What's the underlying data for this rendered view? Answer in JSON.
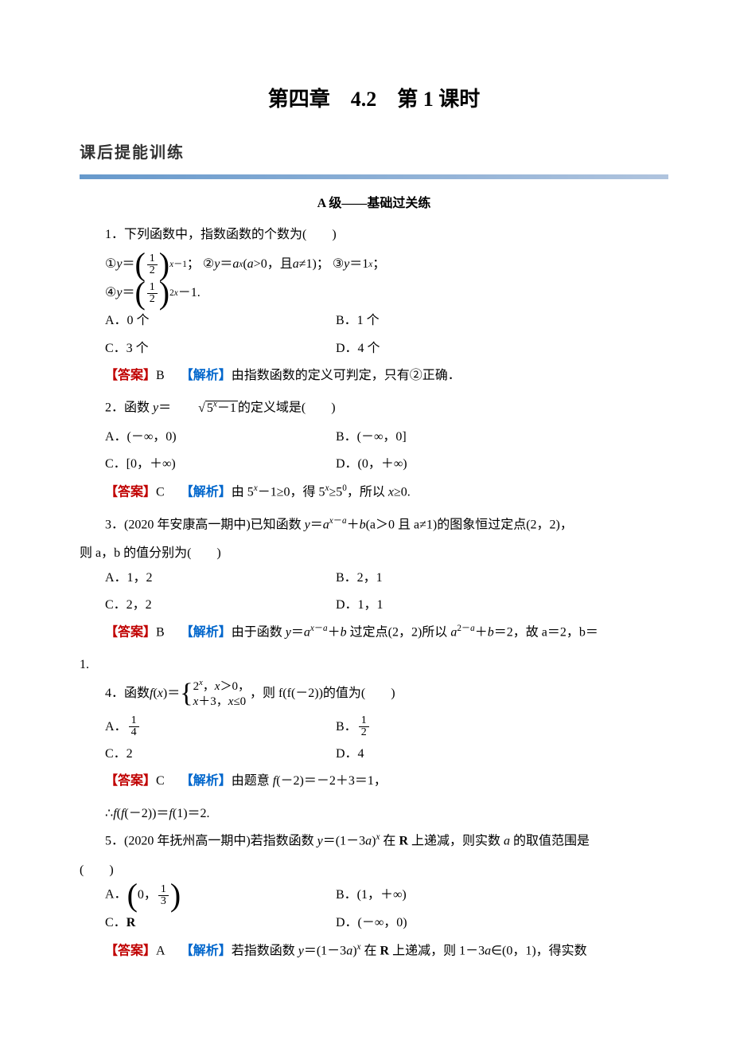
{
  "header": {
    "chapter": "第四章　4.2　第 1 课时",
    "section": "课后提能训练",
    "level": "A 级——基础过关练"
  },
  "q1": {
    "stem": "1．下列函数中，指数函数的个数为(　　)",
    "opt_a": "A．0 个",
    "opt_b": "B．1 个",
    "opt_c": "C．3 个",
    "opt_d": "D．4 个",
    "ans_label": "【答案】",
    "ans": "B",
    "exp_label": "【解析】",
    "exp": "由指数函数的定义可判定，只有②正确．"
  },
  "q2": {
    "stem_prefix": "2．函数 ",
    "stem_suffix": "的定义域是(　　)",
    "opt_a": "A．(－∞，0)",
    "opt_b": "B．(－∞，0]",
    "opt_c": "C．[0，＋∞)",
    "opt_d": "D．(0，＋∞)",
    "ans_label": "【答案】",
    "ans": "C",
    "exp_label": "【解析】",
    "exp_text": "由 5x－1≥0，得 5x≥50，所以 x≥0."
  },
  "q3": {
    "stem_p1": "3．(2020 年安康高一期中)已知函数 ",
    "stem_p2": "(a＞0 且 a≠1)的图象恒过定点(2，2)，",
    "stem_line2": "则 a，b 的值分别为(　　)",
    "opt_a": "A．1，2",
    "opt_b": "B．2，1",
    "opt_c": "C．2，2",
    "opt_d": "D．1，1",
    "ans_label": "【答案】",
    "ans": "B",
    "exp_label": "【解析】",
    "exp_p1": "由于函数 ",
    "exp_p2": " 过定点(2，2)所以 ",
    "exp_p3": "，故 a＝2，b＝",
    "exp_line2": "1."
  },
  "q4": {
    "stem_prefix": "4．函数 ",
    "stem_suffix": "，则 f(f(－2))的值为(　　)",
    "opt_c": "C．2",
    "opt_d": "D．4",
    "ans_label": "【答案】",
    "ans": "C",
    "exp_label": "【解析】",
    "exp_l1": "由题意 f(－2)＝－2＋3＝1，",
    "exp_l2": "∴f(f(－2))＝f(1)＝2."
  },
  "q5": {
    "stem_p1": "5．(2020 年抚州高一期中)若指数函数 ",
    "stem_p2": " 在 R 上递减，则实数 a 的取值范围是",
    "stem_line2": "(　　)",
    "opt_a_prefix": "A．",
    "opt_b": "B．(1，＋∞)",
    "opt_c": "C．R",
    "opt_d": "D．(－∞，0)",
    "ans_label": "【答案】",
    "ans": "A",
    "exp_label": "【解析】",
    "exp_p1": "若指数函数 ",
    "exp_p2": " 在 R 上递减，则 1－3a∈(0，1)，得实数"
  },
  "labels": {
    "circled1": "①",
    "circled2": "②",
    "circled3": "③",
    "circled4": "④"
  }
}
